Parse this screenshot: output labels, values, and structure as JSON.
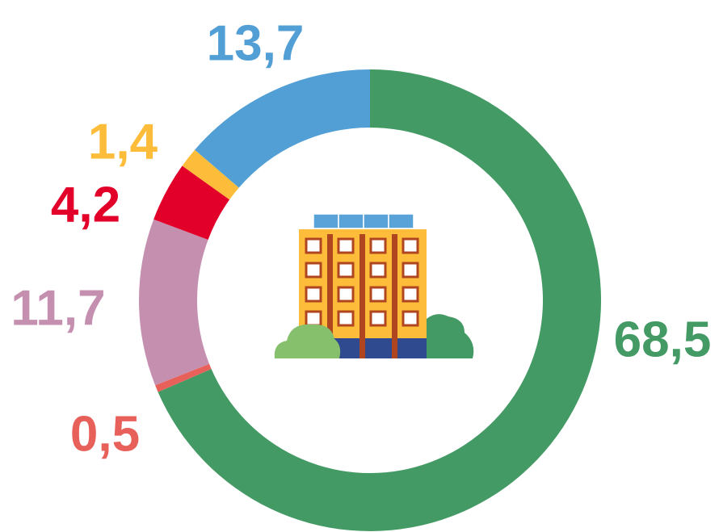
{
  "chart_data": {
    "type": "donut",
    "categories": [
      null,
      null,
      null,
      null,
      null,
      null
    ],
    "values": [
      68.5,
      0.5,
      11.7,
      4.2,
      1.4,
      13.7
    ],
    "value_labels": [
      "68,5",
      "0,5",
      "11,7",
      "4,2",
      "1,4",
      "13,7"
    ],
    "colors": [
      "#449a65",
      "#e8605a",
      "#c58fb0",
      "#e2002a",
      "#fdbd3a",
      "#529fd6"
    ]
  }
}
